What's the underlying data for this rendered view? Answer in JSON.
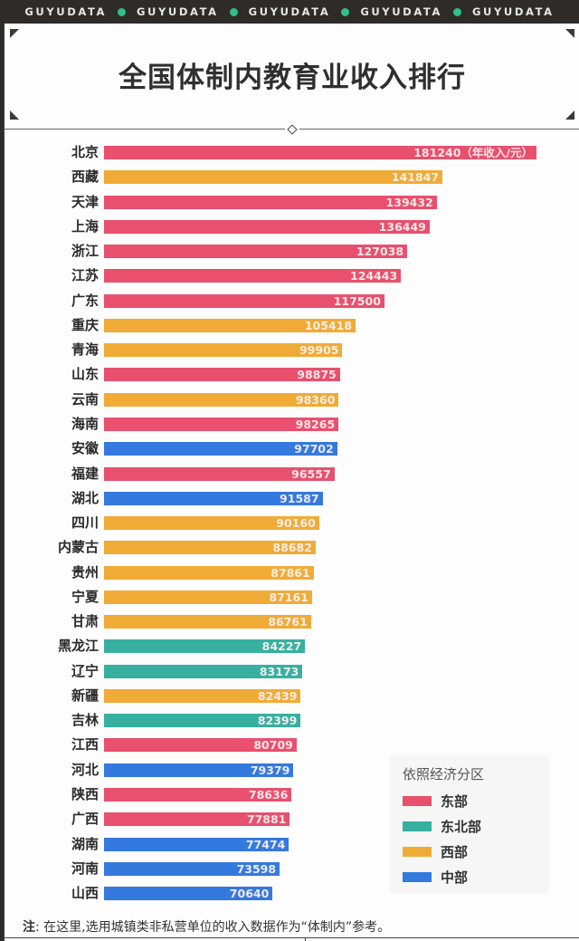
{
  "header": {
    "brand": "GUYUDATA",
    "brand_repeat": 5,
    "dot_color": "#2fbf87"
  },
  "title": "全国体制内教育业收入排行",
  "unit_suffix": "（年收入/元）",
  "legend": {
    "title": "依照经济分区",
    "items": [
      {
        "key": "east",
        "label": "东部",
        "color": "#e8506e"
      },
      {
        "key": "northeast",
        "label": "东北部",
        "color": "#37b0a0"
      },
      {
        "key": "west",
        "label": "西部",
        "color": "#f0ab37"
      },
      {
        "key": "central",
        "label": "中部",
        "color": "#3479de"
      }
    ]
  },
  "note": {
    "prefix": "注",
    "text": ": 在这里,选用城镇类非私营单位的收入数据作为“体制内”参考。"
  },
  "chart_data": {
    "type": "bar",
    "orientation": "horizontal",
    "title": "全国体制内教育业收入排行",
    "xlabel": "年收入/元",
    "ylabel": "",
    "xlim": [
      0,
      181240
    ],
    "grid": false,
    "legend_position": "bottom-right",
    "legend_title": "依照经济分区",
    "categories": [
      "北京",
      "西藏",
      "天津",
      "上海",
      "浙江",
      "江苏",
      "广东",
      "重庆",
      "青海",
      "山东",
      "云南",
      "海南",
      "安徽",
      "福建",
      "湖北",
      "四川",
      "内蒙古",
      "贵州",
      "宁夏",
      "甘肃",
      "黑龙江",
      "辽宁",
      "新疆",
      "吉林",
      "江西",
      "河北",
      "陕西",
      "广西",
      "湖南",
      "河南",
      "山西"
    ],
    "values": [
      181240,
      141847,
      139432,
      136449,
      127038,
      124443,
      117500,
      105418,
      99905,
      98875,
      98360,
      98265,
      97702,
      96557,
      91587,
      90160,
      88682,
      87861,
      87161,
      86761,
      84227,
      83173,
      82439,
      82399,
      80709,
      79379,
      78636,
      77881,
      77474,
      73598,
      70640
    ],
    "region": [
      "东部",
      "西部",
      "东部",
      "东部",
      "东部",
      "东部",
      "东部",
      "西部",
      "西部",
      "东部",
      "西部",
      "东部",
      "中部",
      "东部",
      "中部",
      "西部",
      "西部",
      "西部",
      "西部",
      "西部",
      "东北部",
      "东北部",
      "西部",
      "东北部",
      "东部",
      "中部",
      "东部",
      "东部",
      "中部",
      "中部",
      "中部"
    ],
    "annotations": [
      "181240（年收入/元）"
    ],
    "note": "注: 在这里,选用城镇类非私营单位的收入数据作为“体制内”参考。"
  }
}
